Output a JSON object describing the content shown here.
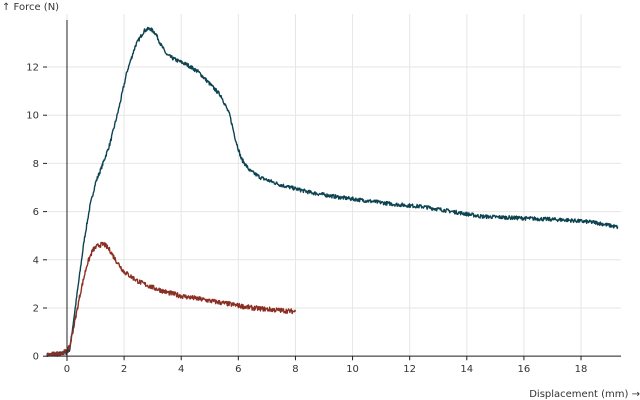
{
  "chart_data": {
    "type": "line",
    "title": "",
    "xlabel": "Displacement (mm) →",
    "ylabel": "↑ Force (N)",
    "xlim": [
      -0.7,
      19.4
    ],
    "ylim": [
      -0.2,
      14.2
    ],
    "x_ticks": [
      0,
      2,
      4,
      6,
      8,
      10,
      12,
      14,
      16,
      18
    ],
    "y_ticks": [
      0,
      2,
      4,
      6,
      8,
      10,
      12
    ],
    "grid": true,
    "legend": "none",
    "series": [
      {
        "color": "#0e4451",
        "points": [
          [
            -0.7,
            0.05
          ],
          [
            -0.3,
            0.1
          ],
          [
            0.0,
            0.15
          ],
          [
            0.1,
            0.3
          ],
          [
            0.2,
            1.2
          ],
          [
            0.4,
            3.0
          ],
          [
            0.6,
            4.8
          ],
          [
            0.8,
            6.2
          ],
          [
            1.0,
            7.2
          ],
          [
            1.2,
            7.8
          ],
          [
            1.5,
            8.8
          ],
          [
            1.8,
            10.2
          ],
          [
            2.1,
            11.8
          ],
          [
            2.4,
            12.9
          ],
          [
            2.7,
            13.5
          ],
          [
            2.9,
            13.6
          ],
          [
            3.1,
            13.4
          ],
          [
            3.3,
            12.9
          ],
          [
            3.5,
            12.5
          ],
          [
            3.8,
            12.3
          ],
          [
            4.2,
            12.1
          ],
          [
            4.6,
            11.8
          ],
          [
            5.0,
            11.3
          ],
          [
            5.4,
            10.8
          ],
          [
            5.7,
            10.0
          ],
          [
            5.9,
            9.0
          ],
          [
            6.1,
            8.2
          ],
          [
            6.4,
            7.7
          ],
          [
            6.8,
            7.4
          ],
          [
            7.5,
            7.1
          ],
          [
            8.5,
            6.8
          ],
          [
            9.5,
            6.6
          ],
          [
            10.5,
            6.45
          ],
          [
            11.5,
            6.3
          ],
          [
            12.5,
            6.2
          ],
          [
            13.5,
            6.0
          ],
          [
            14.5,
            5.8
          ],
          [
            15.5,
            5.75
          ],
          [
            16.5,
            5.7
          ],
          [
            17.5,
            5.65
          ],
          [
            18.5,
            5.55
          ],
          [
            19.3,
            5.35
          ]
        ]
      },
      {
        "color": "#8b2f24",
        "points": [
          [
            -0.7,
            0.05
          ],
          [
            -0.3,
            0.1
          ],
          [
            0.0,
            0.2
          ],
          [
            0.1,
            0.4
          ],
          [
            0.3,
            1.6
          ],
          [
            0.5,
            2.8
          ],
          [
            0.7,
            3.8
          ],
          [
            0.9,
            4.4
          ],
          [
            1.1,
            4.6
          ],
          [
            1.3,
            4.65
          ],
          [
            1.5,
            4.4
          ],
          [
            1.7,
            4.0
          ],
          [
            2.0,
            3.5
          ],
          [
            2.5,
            3.1
          ],
          [
            3.0,
            2.85
          ],
          [
            3.5,
            2.65
          ],
          [
            4.0,
            2.5
          ],
          [
            4.5,
            2.4
          ],
          [
            5.0,
            2.3
          ],
          [
            5.5,
            2.2
          ],
          [
            6.0,
            2.1
          ],
          [
            6.5,
            2.0
          ],
          [
            7.0,
            1.95
          ],
          [
            7.5,
            1.9
          ],
          [
            8.0,
            1.85
          ]
        ]
      }
    ]
  }
}
